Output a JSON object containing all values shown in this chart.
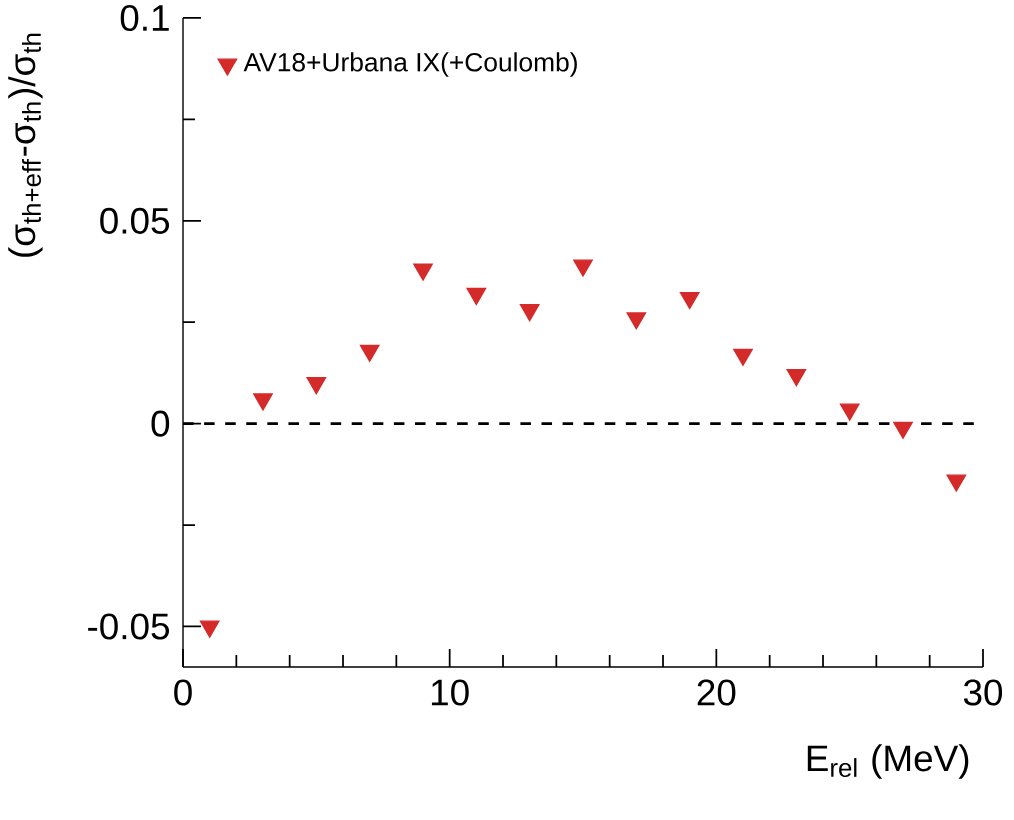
{
  "chart_data": {
    "type": "scatter",
    "xlabel": "E$_{rel}$ (MeV)",
    "ylabel": "(σ$_{th+eff}$-σ$_{th}$)/σ$_{th}$",
    "x": [
      1,
      3,
      5,
      7,
      9,
      11,
      13,
      15,
      17,
      19,
      21,
      23,
      25,
      27,
      29
    ],
    "series": [
      {
        "name": "AV18+Urbana IX(+Coulomb)",
        "color": "#d42a2a",
        "values": [
          -0.05,
          0.006,
          0.01,
          0.018,
          0.038,
          0.032,
          0.028,
          0.039,
          0.026,
          0.031,
          0.017,
          0.012,
          0.0035,
          -0.001,
          -0.014
        ]
      }
    ],
    "xlim": [
      0,
      30
    ],
    "ylim": [
      -0.06,
      0.1
    ],
    "xticks": [
      0,
      10,
      20,
      30
    ],
    "yticks": [
      -0.05,
      0,
      0.05,
      0.1
    ],
    "ref_lines": [
      {
        "axis": "y",
        "value": 0,
        "line_style": "dashed",
        "color": "#000000"
      }
    ],
    "marker": "triangle-down",
    "legend": "top left",
    "grid": false
  }
}
